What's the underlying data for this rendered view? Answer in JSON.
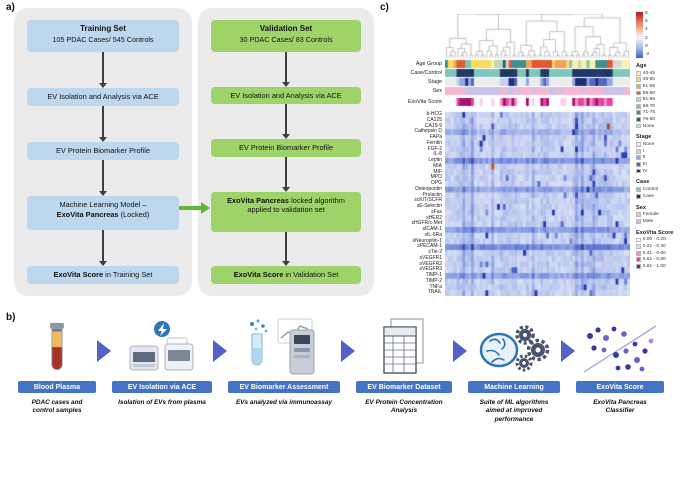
{
  "panel_a": {
    "label": "a)",
    "training": {
      "title": "Training Set",
      "subtitle": "105 PDAC Cases/ 545 Controls",
      "step2": "EV Isolation and Analysis via ACE",
      "step3": "EV Protein Biomarker Profile",
      "ml_line1": "Machine Learning Model –",
      "ml_bold": "ExoVita Pancreas",
      "ml_rest": " (Locked)",
      "score_bold": "ExoVita Score",
      "score_rest": " in Training Set"
    },
    "validation": {
      "title": "Validation Set",
      "subtitle": "30 PDAC Cases/ 83 Controls",
      "step2": "EV Isolation and Analysis via ACE",
      "step3": "EV Protein Biomarker Profile",
      "lock_bold": "ExoVita Pancreas",
      "lock_rest": " locked algorithm applied to validation set",
      "score_bold": "ExoVita Score",
      "score_rest": " in Validation Set"
    }
  },
  "panel_b": {
    "label": "b)",
    "steps": [
      {
        "label": "Blood Plasma",
        "desc": "PDAC cases and control samples",
        "icon": "blood-tube-icon"
      },
      {
        "label": "EV Isolation via ACE",
        "desc": "Isolation of EVs from plasma",
        "icon": "ace-instrument-icon"
      },
      {
        "label": "EV Biomarker Assessment",
        "desc": "EVs analyzed via immunoassay",
        "icon": "immunoassay-icon"
      },
      {
        "label": "EV Biomarker Dataset",
        "desc": "EV Protein Concentration Analysis",
        "icon": "dataset-icon"
      },
      {
        "label": "Machine Learning",
        "desc": "Suite of ML algorithms aimed at improved performance",
        "icon": "brain-gears-icon"
      },
      {
        "label": "ExoVita Score",
        "desc": "ExoVita Pancreas Classifier",
        "icon": "scatter-classifier-icon"
      }
    ]
  },
  "panel_c": {
    "label": "c)",
    "chart_data": {
      "type": "heatmap",
      "n_samples": 64,
      "rows": [
        "b-HCG",
        "CA125",
        "CA19-9",
        "Cathepsin D",
        "FAPa",
        "Ferritin",
        "FGF-2",
        "IL-8",
        "Leptin",
        "MIA",
        "MIF",
        "MPO",
        "OPG",
        "Osteopontin",
        "Prolactin",
        "scKIT/SCFR",
        "sE-Selectin",
        "sFas",
        "sHER2",
        "sHGFR/c-Met",
        "sICAM-1",
        "sIL-6Ra",
        "sNeuropilin-1",
        "sPECAM-1",
        "sTie-2",
        "sVEGFR1",
        "sVEGFR2",
        "sVEGFR3",
        "TIMP-1",
        "TIMP-2",
        "TNFa",
        "TRAIL"
      ],
      "annotation_tracks": [
        "Age Group",
        "Case/Control",
        "Stage",
        "Sex",
        "ExoVita Score"
      ],
      "colorbar_ticks": [
        "8",
        "6",
        "4",
        "2",
        "0",
        "-2"
      ],
      "heat_colors": [
        "#F4F6FD",
        "#BCC8EE",
        "#6E86DC",
        "#2238A8"
      ],
      "legends": [
        {
          "title": "Age",
          "entries": [
            [
              "40-45",
              "#FCF4A3"
            ],
            [
              "46-50",
              "#F9DC5C"
            ],
            [
              "51-55",
              "#F4A259"
            ],
            [
              "56-60",
              "#E4572E"
            ],
            [
              "61-65",
              "#BFD8B8"
            ],
            [
              "66-70",
              "#74C6C0"
            ],
            [
              "71-75",
              "#3E8E8C"
            ],
            [
              "76-80",
              "#1F6072"
            ],
            [
              "None",
              "#D9D9D9"
            ]
          ]
        },
        {
          "title": "Stage",
          "entries": [
            [
              "None",
              "#ECECEC"
            ],
            [
              "I",
              "#C9D1F0"
            ],
            [
              "II",
              "#93A5E3"
            ],
            [
              "III",
              "#5166C4"
            ],
            [
              "IV",
              "#1F2E7A"
            ]
          ]
        },
        {
          "title": "Case",
          "entries": [
            [
              "Control",
              "#7FC6BC"
            ],
            [
              "Case",
              "#1F3864"
            ]
          ]
        },
        {
          "title": "Sex",
          "entries": [
            [
              "Female",
              "#F4B8D0"
            ],
            [
              "Male",
              "#C9C3EC"
            ]
          ]
        },
        {
          "title": "ExoVita Score",
          "entries": [
            [
              "0.00 - 0.20",
              "#FFFFFF"
            ],
            [
              "0.21 - 0.40",
              "#FAD1E6"
            ],
            [
              "0.41 - 0.60",
              "#F391C7"
            ],
            [
              "0.61 - 0.80",
              "#E545A0"
            ],
            [
              "0.81 - 1.00",
              "#A3126E"
            ]
          ]
        }
      ]
    }
  }
}
